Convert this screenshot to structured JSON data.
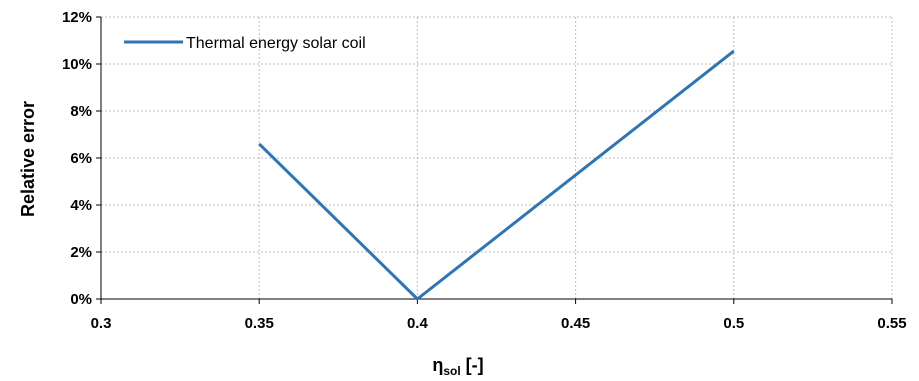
{
  "chart_data": {
    "type": "line",
    "xlabel_main": "η",
    "xlabel_sub": "sol",
    "xlabel_tail": " [-]",
    "ylabel": "Relative error",
    "xlim": [
      0.3,
      0.55
    ],
    "ylim": [
      0,
      0.12
    ],
    "x_ticks": [
      "0.3",
      "0.35",
      "0.4",
      "0.45",
      "0.5",
      "0.55"
    ],
    "x_tick_values": [
      0.3,
      0.35,
      0.4,
      0.45,
      0.5,
      0.55
    ],
    "y_ticks": [
      "0%",
      "2%",
      "4%",
      "6%",
      "8%",
      "10%",
      "12%"
    ],
    "y_tick_values": [
      0,
      0.02,
      0.04,
      0.06,
      0.08,
      0.1,
      0.12
    ],
    "grid": true,
    "legend_position": "top-left",
    "series": [
      {
        "name": "Thermal energy solar coil",
        "color": "#2e75b6",
        "x": [
          0.35,
          0.4,
          0.5
        ],
        "y": [
          0.066,
          0.0,
          0.1055
        ]
      }
    ]
  }
}
